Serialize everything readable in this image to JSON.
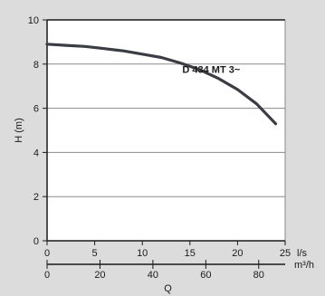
{
  "chart_data": {
    "type": "line",
    "ylabel": "H (m)",
    "x_primary_unit": "l/s",
    "x_secondary_unit": "m³/h",
    "x_shared_label": "Q",
    "xlim": [
      0,
      25
    ],
    "ylim": [
      0,
      10
    ],
    "x_ticks": [
      0,
      5,
      10,
      15,
      20,
      25
    ],
    "y_ticks": [
      0,
      2,
      4,
      6,
      8,
      10
    ],
    "x2_ticks": [
      0,
      20,
      40,
      60,
      80
    ],
    "grid": "horizontal",
    "series": [
      {
        "name": "D 434 MT 3~",
        "x": [
          0,
          2,
          4,
          6,
          8,
          10,
          12,
          14,
          16,
          18,
          20,
          22,
          24
        ],
        "y": [
          8.9,
          8.85,
          8.8,
          8.7,
          8.6,
          8.45,
          8.3,
          8.05,
          7.75,
          7.35,
          6.85,
          6.2,
          5.3
        ]
      }
    ]
  },
  "colors": {
    "background": "#dcdcdc",
    "plot_area": "#ffffff",
    "curve": "#3a3d44",
    "gridline": "#8a8a8a",
    "axis": "#1a1a1a"
  }
}
